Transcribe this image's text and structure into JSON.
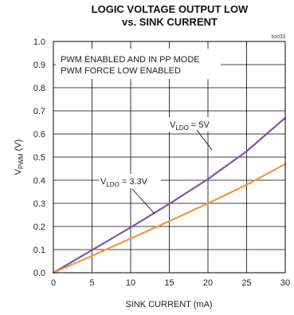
{
  "chart_data": {
    "type": "line",
    "title_line1": "LOGIC VOLTAGE OUTPUT LOW",
    "title_line2": "vs. SINK CURRENT",
    "tag": "toc03",
    "xlabel": "SINK CURRENT (mA)",
    "ylabel_main": "V",
    "ylabel_sub": "PWM",
    "ylabel_unit": " (V)",
    "xlim": [
      0,
      30
    ],
    "ylim": [
      0,
      1.0
    ],
    "x_ticks": [
      "0",
      "5",
      "10",
      "15",
      "20",
      "25",
      "30"
    ],
    "y_ticks": [
      "0.0",
      "0.1",
      "0.2",
      "0.3",
      "0.4",
      "0.5",
      "0.6",
      "0.7",
      "0.8",
      "0.9",
      "1.0"
    ],
    "grid": true,
    "notes": [
      "PWM ENABLED AND IN PP MODE",
      "PWM FORCE LOW ENABLED"
    ],
    "series": [
      {
        "name_main": "V",
        "name_sub": "LDO",
        "name_val": " = 5V",
        "color": "#7b57a8",
        "x": [
          0,
          5,
          10,
          15,
          20,
          25,
          30
        ],
        "y": [
          0,
          0.098,
          0.196,
          0.298,
          0.405,
          0.525,
          0.67
        ]
      },
      {
        "name_main": "V",
        "name_sub": "LDO",
        "name_val": " = 3.3V",
        "color": "#f5963a",
        "x": [
          0,
          5,
          10,
          15,
          20,
          25,
          30
        ],
        "y": [
          0,
          0.073,
          0.148,
          0.223,
          0.3,
          0.38,
          0.47
        ]
      }
    ]
  }
}
